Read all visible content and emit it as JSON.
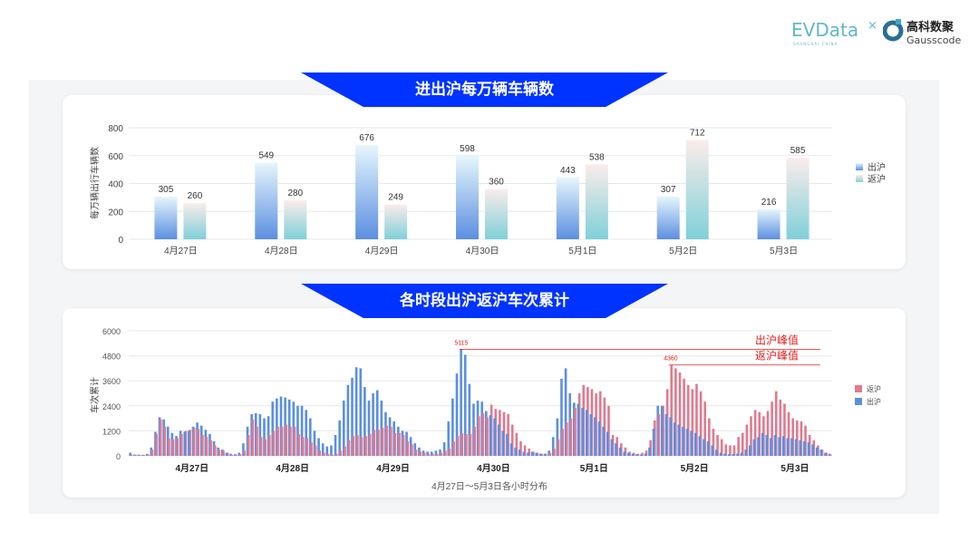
{
  "logos": {
    "evdata": "EVData",
    "evdata_sub": "SHANGHAI CHINA",
    "gauss_cn": "高科数聚",
    "gauss_en": "Gausscode"
  },
  "colors": {
    "banner": "#0033ff",
    "out": "#5b8fe0",
    "in": "#e07a8e",
    "in_gradient_bottom": "#7fd0d8",
    "peak": "#e02020"
  },
  "chart_data": [
    {
      "type": "bar",
      "title": "进出沪每万辆车辆数",
      "ylabel": "每万辆出行车辆数",
      "ylim": [
        0,
        800
      ],
      "yticks": [
        0,
        200,
        400,
        600,
        800
      ],
      "categories": [
        "4月27日",
        "4月28日",
        "4月29日",
        "4月30日",
        "5月1日",
        "5月2日",
        "5月3日"
      ],
      "series": [
        {
          "name": "出沪",
          "values": [
            305,
            549,
            676,
            598,
            443,
            307,
            216
          ]
        },
        {
          "name": "返沪",
          "values": [
            260,
            280,
            249,
            360,
            538,
            712,
            585
          ]
        }
      ],
      "data_labels": true,
      "grid": true,
      "legend": "right"
    },
    {
      "type": "bar",
      "title": "各时段出沪返沪车次累计",
      "ylabel": "车次累计",
      "xlabel": "4月27日～5月3日各小时分布",
      "ylim": [
        0,
        6000
      ],
      "yticks": [
        0,
        1200,
        2400,
        3600,
        4800,
        6000
      ],
      "day_labels": [
        "4月27日",
        "4月28日",
        "4月29日",
        "4月30日",
        "5月1日",
        "5月2日",
        "5月3日"
      ],
      "hours_per_day": 24,
      "series": [
        {
          "name": "返沪",
          "values": [
            60,
            50,
            40,
            40,
            60,
            300,
            1050,
            1750,
            1400,
            850,
            800,
            850,
            1050,
            1200,
            1250,
            1350,
            1300,
            1000,
            900,
            750,
            500,
            300,
            250,
            150,
            50,
            60,
            80,
            250,
            1000,
            1750,
            1400,
            900,
            800,
            1000,
            1200,
            1400,
            1400,
            1500,
            1400,
            1400,
            1050,
            900,
            850,
            650,
            500,
            250,
            150,
            100,
            50,
            100,
            250,
            450,
            750,
            950,
            1000,
            900,
            950,
            1050,
            1250,
            1250,
            1350,
            1450,
            1400,
            1100,
            1100,
            1000,
            700,
            550,
            300,
            200,
            150,
            100,
            100,
            100,
            150,
            250,
            350,
            700,
            950,
            1100,
            1050,
            1050,
            1400,
            1900,
            2050,
            1850,
            2450,
            2250,
            2200,
            2100,
            2000,
            1500,
            1100,
            700,
            500,
            350,
            200,
            150,
            100,
            100,
            150,
            350,
            800,
            1300,
            1600,
            1800,
            2300,
            3000,
            3400,
            3300,
            3200,
            3000,
            3100,
            2800,
            2400,
            1000,
            900,
            600,
            400,
            200,
            150,
            100,
            150,
            250,
            750,
            1700,
            2000,
            2400,
            3200,
            4360,
            4200,
            4000,
            3700,
            3400,
            3200,
            3450,
            3100,
            2600,
            1800,
            1300,
            1000,
            800,
            550,
            500,
            500,
            900,
            1100,
            1500,
            1900,
            2200,
            2100,
            1900,
            2150,
            2600,
            3100,
            2700,
            2500,
            2100,
            1800,
            1700,
            1650,
            1450,
            1000,
            750,
            500,
            300,
            150,
            60
          ]
        },
        {
          "name": "出沪",
          "values": [
            150,
            60,
            60,
            50,
            100,
            400,
            1150,
            1850,
            1750,
            1400,
            1100,
            950,
            1200,
            1150,
            1200,
            1400,
            1600,
            1450,
            1250,
            1050,
            700,
            400,
            300,
            150,
            100,
            80,
            150,
            600,
            1400,
            2000,
            2050,
            2000,
            1800,
            1900,
            2600,
            2750,
            2850,
            2800,
            2700,
            2600,
            2400,
            2400,
            2200,
            1800,
            1200,
            850,
            600,
            450,
            500,
            1000,
            1700,
            2650,
            3400,
            3750,
            4250,
            4200,
            3300,
            2650,
            3000,
            3150,
            2650,
            2100,
            1850,
            1650,
            1400,
            1200,
            1150,
            900,
            600,
            400,
            250,
            200,
            200,
            250,
            300,
            650,
            1650,
            2750,
            3950,
            5115,
            4850,
            3450,
            2500,
            2650,
            2600,
            2150,
            1950,
            1800,
            1500,
            1200,
            1050,
            600,
            400,
            300,
            200,
            150,
            200,
            150,
            100,
            100,
            250,
            900,
            1800,
            3700,
            4200,
            3000,
            2550,
            2500,
            2300,
            2200,
            2000,
            1850,
            1650,
            1400,
            1150,
            800,
            600,
            400,
            200,
            150,
            100,
            80,
            60,
            100,
            400,
            1300,
            2400,
            2400,
            2000,
            1850,
            1600,
            1500,
            1400,
            1300,
            1200,
            1100,
            950,
            800,
            700,
            500,
            300,
            150,
            100,
            80,
            100,
            100,
            150,
            300,
            500,
            800,
            900,
            1100,
            1000,
            850,
            1000,
            900,
            950,
            850,
            850,
            800,
            750,
            700,
            650,
            550,
            400,
            300,
            150,
            100
          ]
        }
      ],
      "annotations": [
        {
          "label": "出沪峰值",
          "value": 5115,
          "value_label": "5115"
        },
        {
          "label": "返沪峰值",
          "value": 4360,
          "value_label": "4360"
        }
      ],
      "grid": true,
      "legend": "right"
    }
  ]
}
